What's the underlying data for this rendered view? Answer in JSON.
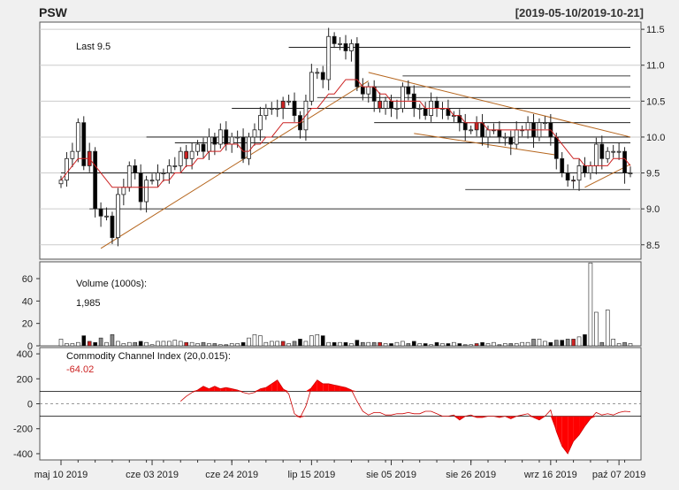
{
  "header": {
    "symbol": "PSW",
    "date_range": "[2019-05-10/2019-10-21]"
  },
  "price_panel": {
    "last_label": "Last 9.5"
  },
  "volume_panel": {
    "title": "Volume (1000s):",
    "last_value": "1,985"
  },
  "cci_panel": {
    "title": "Commodity Channel Index (20,0.015):",
    "last_value": "-64.02"
  },
  "colors": {
    "background": "#f0f0f0",
    "up_fill": "#ffffff",
    "down_fill": "#000000",
    "highlight": "#cc2222",
    "ma_line": "#cc2222",
    "trend_line": "#b5651d",
    "level_line": "#000000",
    "grid": "#cccccc"
  },
  "chart_data": [
    {
      "type": "candlestick",
      "title": "PSW",
      "x_axis_labels": [
        "maj 10 2019",
        "cze 03 2019",
        "cze 24 2019",
        "lip 15 2019",
        "sie 05 2019",
        "sie 26 2019",
        "wrz 16 2019",
        "paź 07 2019"
      ],
      "ylim": [
        8.3,
        11.6
      ],
      "y_ticks": [
        8.5,
        9.0,
        9.5,
        10.0,
        10.5,
        11.0,
        11.5
      ],
      "close": [
        9.4,
        9.7,
        9.8,
        10.2,
        9.6,
        9.8,
        9.0,
        8.9,
        8.9,
        8.6,
        9.2,
        9.3,
        9.6,
        9.5,
        9.1,
        9.4,
        9.4,
        9.5,
        9.5,
        9.6,
        9.6,
        9.8,
        9.7,
        9.8,
        9.9,
        9.8,
        10.0,
        9.9,
        10.1,
        9.9,
        10.0,
        10.0,
        9.7,
        10.0,
        10.1,
        10.3,
        10.4,
        10.4,
        10.4,
        10.5,
        10.5,
        10.3,
        10.1,
        10.5,
        10.9,
        10.9,
        10.8,
        11.4,
        11.3,
        11.3,
        11.2,
        11.3,
        10.7,
        10.6,
        10.7,
        10.5,
        10.4,
        10.5,
        10.4,
        10.4,
        10.7,
        10.6,
        10.4,
        10.4,
        10.3,
        10.5,
        10.4,
        10.4,
        10.3,
        10.3,
        10.2,
        10.1,
        10.1,
        10.2,
        10.0,
        10.1,
        10.1,
        10.0,
        10.0,
        9.9,
        10.1,
        10.1,
        10.2,
        10.0,
        10.2,
        10.2,
        10.0,
        9.7,
        9.5,
        9.4,
        9.4,
        9.6,
        9.5,
        9.6,
        9.9,
        9.7,
        9.8,
        9.8,
        9.8,
        9.5,
        9.5
      ],
      "series": [
        {
          "name": "",
          "style": "moving-average-line",
          "values": [
            9.4,
            9.5,
            9.6,
            9.7,
            9.7,
            9.7,
            9.6,
            9.5,
            9.4,
            9.3,
            9.3,
            9.3,
            9.3,
            9.3,
            9.3,
            9.3,
            9.3,
            9.3,
            9.4,
            9.4,
            9.5,
            9.5,
            9.6,
            9.6,
            9.7,
            9.7,
            9.8,
            9.8,
            9.8,
            9.9,
            9.9,
            9.9,
            9.8,
            9.8,
            9.9,
            9.9,
            10.0,
            10.0,
            10.1,
            10.2,
            10.2,
            10.2,
            10.2,
            10.3,
            10.4,
            10.4,
            10.5,
            10.6,
            10.6,
            10.7,
            10.8,
            10.8,
            10.8,
            10.7,
            10.7,
            10.7,
            10.6,
            10.6,
            10.5,
            10.5,
            10.5,
            10.5,
            10.5,
            10.5,
            10.4,
            10.4,
            10.4,
            10.4,
            10.4,
            10.3,
            10.3,
            10.2,
            10.2,
            10.2,
            10.2,
            10.1,
            10.1,
            10.1,
            10.1,
            10.1,
            10.1,
            10.1,
            10.1,
            10.1,
            10.1,
            10.1,
            10.1,
            10.0,
            9.9,
            9.8,
            9.7,
            9.7,
            9.6,
            9.6,
            9.6,
            9.6,
            9.6,
            9.7,
            9.7,
            9.7,
            9.6
          ]
        }
      ],
      "grid": true,
      "last": 9.5
    },
    {
      "type": "bar",
      "title": "Volume (1000s):",
      "ylim": [
        0,
        75
      ],
      "y_ticks": [
        0,
        20,
        40,
        60
      ],
      "values": [
        6,
        2,
        2,
        3,
        9,
        4,
        3,
        7,
        3,
        10,
        4,
        2,
        3,
        3,
        4,
        3,
        1,
        4,
        4,
        4,
        5,
        4,
        3,
        3,
        2,
        3,
        2,
        2,
        1,
        1,
        2,
        2,
        3,
        7,
        10,
        9,
        3,
        4,
        4,
        4,
        2,
        4,
        6,
        4,
        9,
        10,
        9,
        3,
        3,
        3,
        3,
        2,
        5,
        3,
        3,
        3,
        3,
        2,
        2,
        3,
        4,
        2,
        4,
        2,
        2,
        1,
        3,
        2,
        2,
        3,
        2,
        1,
        1,
        2,
        3,
        2,
        3,
        1,
        2,
        2,
        2,
        3,
        3,
        6,
        6,
        4,
        3,
        5,
        5,
        6,
        6,
        8,
        10,
        74,
        30,
        3,
        32,
        6,
        2,
        3,
        2
      ]
    },
    {
      "type": "area",
      "title": "Commodity Channel Index (20,0.015):",
      "ylim": [
        -450,
        450
      ],
      "y_ticks": [
        -400,
        -200,
        0,
        200,
        400
      ],
      "reference_lines": [
        100,
        -100
      ],
      "values": [
        0,
        0,
        0,
        0,
        0,
        0,
        0,
        0,
        0,
        0,
        0,
        0,
        0,
        0,
        0,
        0,
        0,
        0,
        0,
        0,
        0,
        20,
        60,
        90,
        110,
        140,
        120,
        140,
        120,
        130,
        120,
        110,
        90,
        80,
        90,
        120,
        130,
        160,
        190,
        120,
        80,
        -80,
        -110,
        -20,
        130,
        190,
        160,
        160,
        150,
        140,
        130,
        110,
        20,
        -60,
        -90,
        -70,
        -70,
        -90,
        -90,
        -80,
        -80,
        -70,
        -80,
        -80,
        -60,
        -60,
        -80,
        -100,
        -100,
        -90,
        -130,
        -100,
        -90,
        -110,
        -110,
        -100,
        -100,
        -110,
        -100,
        -120,
        -100,
        -90,
        -80,
        -110,
        -130,
        -100,
        -50,
        -220,
        -340,
        -400,
        -300,
        -250,
        -180,
        -120,
        -70,
        -90,
        -80,
        -90,
        -70,
        -60,
        -64
      ]
    }
  ]
}
